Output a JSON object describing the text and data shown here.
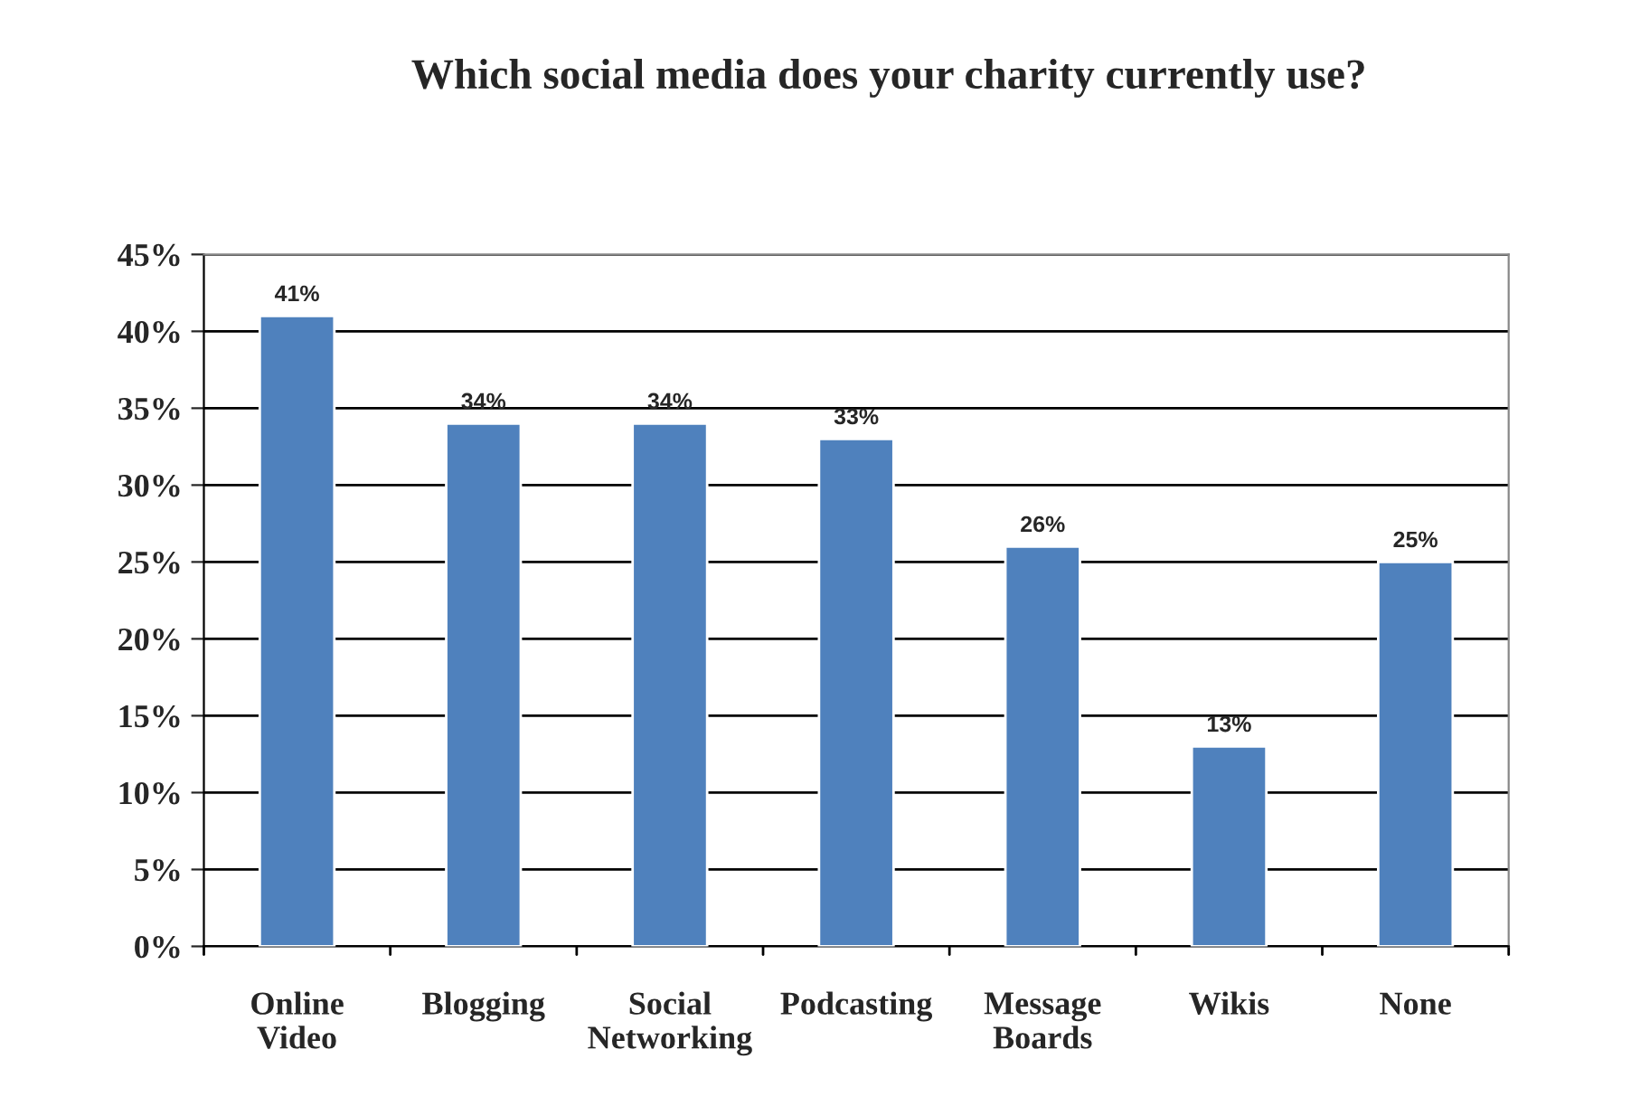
{
  "chart_data": {
    "type": "bar",
    "title": "Which social media does your charity currently use?",
    "categories": [
      "Online\nVideo",
      "Blogging",
      "Social\nNetworking",
      "Podcasting",
      "Message\nBoards",
      "Wikis",
      "None"
    ],
    "values": [
      41,
      34,
      34,
      33,
      26,
      13,
      25
    ],
    "value_labels": [
      "41%",
      "34%",
      "34%",
      "33%",
      "26%",
      "13%",
      "25%"
    ],
    "color": "#4f81bd",
    "ylim": [
      0,
      45
    ],
    "yticks": [
      {
        "value": 0,
        "label": "0%"
      },
      {
        "value": 5,
        "label": "5%"
      },
      {
        "value": 10,
        "label": "10%"
      },
      {
        "value": 15,
        "label": "15%"
      },
      {
        "value": 20,
        "label": "20%"
      },
      {
        "value": 25,
        "label": "25%"
      },
      {
        "value": 30,
        "label": "30%"
      },
      {
        "value": 35,
        "label": "35%"
      },
      {
        "value": 40,
        "label": "40%"
      },
      {
        "value": 45,
        "label": "45%"
      }
    ],
    "grid": "y"
  }
}
